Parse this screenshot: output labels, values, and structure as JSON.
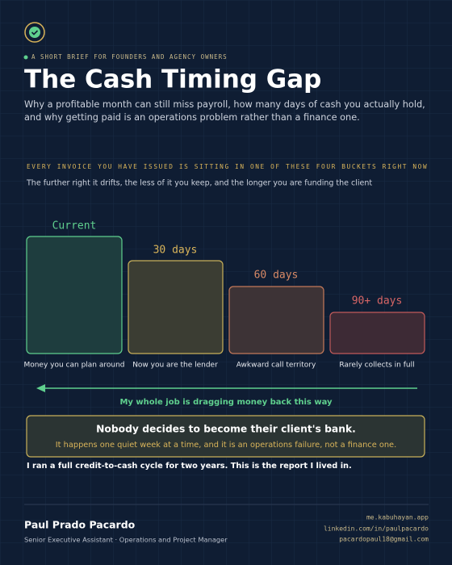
{
  "header": {
    "eyebrow": "A SHORT BRIEF FOR FOUNDERS AND AGENCY OWNERS",
    "title": "The Cash Timing Gap",
    "subtitle": [
      "Why a profitable month can still miss payroll, how many days of cash you actually hold,",
      "and why getting paid is an operations problem rather than a finance one."
    ]
  },
  "section": {
    "label": "EVERY INVOICE YOU HAVE ISSUED IS SITTING IN ONE OF THESE FOUR BUCKETS RIGHT NOW",
    "note": "The further right it drifts, the less of it you keep, and the longer you are funding the client"
  },
  "buckets": [
    {
      "label": "Current",
      "caption": "Money you can plan around"
    },
    {
      "label": "30 days",
      "caption": "Now you are the lender"
    },
    {
      "label": "60 days",
      "caption": "Awkward call territory"
    },
    {
      "label": "90+ days",
      "caption": "Rarely collects in full"
    }
  ],
  "arrow_caption": "My whole job is dragging money back this way",
  "callout": {
    "headline": "Nobody decides to become their client's bank.",
    "body": "It happens one quiet week at a time, and it is an operations failure, not a finance one."
  },
  "statement": "I ran a full credit-to-cash cycle for two years. This is the report I lived in.",
  "footer": {
    "name": "Paul Prado Pacardo",
    "role": "Senior Executive Assistant · Operations and Project Manager",
    "links": [
      "me.kabuhayan.app",
      "linkedin.com/in/paulpacardo",
      "pacardopaul18@gmail.com"
    ]
  }
}
